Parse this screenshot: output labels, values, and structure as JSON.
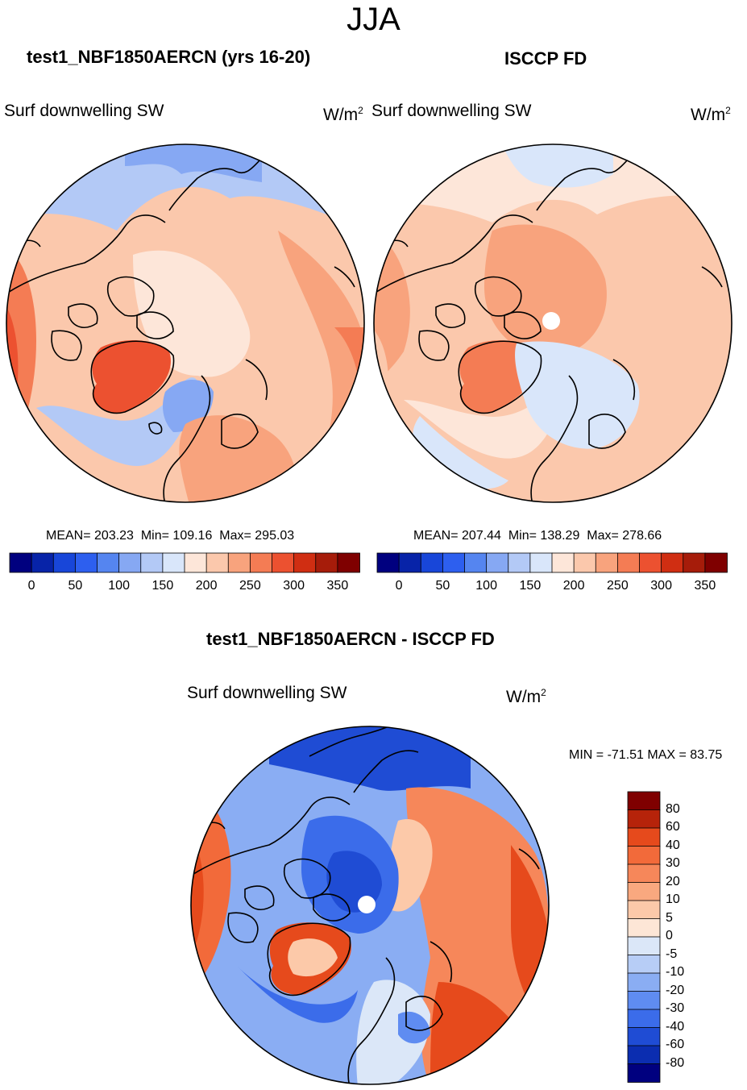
{
  "season": "JJA",
  "panels": {
    "model": {
      "title": "test1_NBF1850AERCN (yrs 16-20)",
      "variable": "Surf downwelling SW",
      "units_base": "W/m",
      "units_exp": "2",
      "mean_text": "MEAN= 203.23",
      "min_text": "Min= 109.16",
      "max_text": "Max= 295.03"
    },
    "obs": {
      "title": "ISCCP FD",
      "variable": "Surf downwelling SW",
      "units_base": "W/m",
      "units_exp": "2",
      "mean_text": "MEAN= 207.44",
      "min_text": "Min= 138.29",
      "max_text": "Max= 278.66"
    },
    "diff": {
      "title": "test1_NBF1850AERCN - ISCCP FD",
      "variable": "Surf downwelling SW",
      "units_base": "W/m",
      "units_exp": "2",
      "minmax_text": "MIN = -71.51 MAX =  83.75"
    }
  },
  "abs_colorbar": {
    "ticks": [
      "0",
      "50",
      "100",
      "150",
      "200",
      "250",
      "300",
      "350"
    ],
    "colors": [
      "#00007f",
      "#0723a8",
      "#1846d9",
      "#2d5fef",
      "#5585f0",
      "#86a8f3",
      "#b3c9f6",
      "#d9e6fa",
      "#fde6d9",
      "#fbc8ac",
      "#f8a37d",
      "#f47c54",
      "#ec5130",
      "#d02e12",
      "#a61c0a",
      "#7f0000"
    ]
  },
  "diff_colorbar": {
    "ticks": [
      "80",
      "60",
      "40",
      "30",
      "20",
      "10",
      "5",
      "0",
      "-5",
      "-10",
      "-20",
      "-30",
      "-40",
      "-60",
      "-80"
    ],
    "colors": [
      "#7f0000",
      "#b6230a",
      "#e64a1c",
      "#f26a3a",
      "#f6875a",
      "#f9a87f",
      "#fcc9a9",
      "#fde6d6",
      "#dbe7f8",
      "#b7cdf6",
      "#8aadf3",
      "#5f8cf1",
      "#3b6cea",
      "#1f4cd4",
      "#0b2db0",
      "#00007f"
    ]
  }
}
